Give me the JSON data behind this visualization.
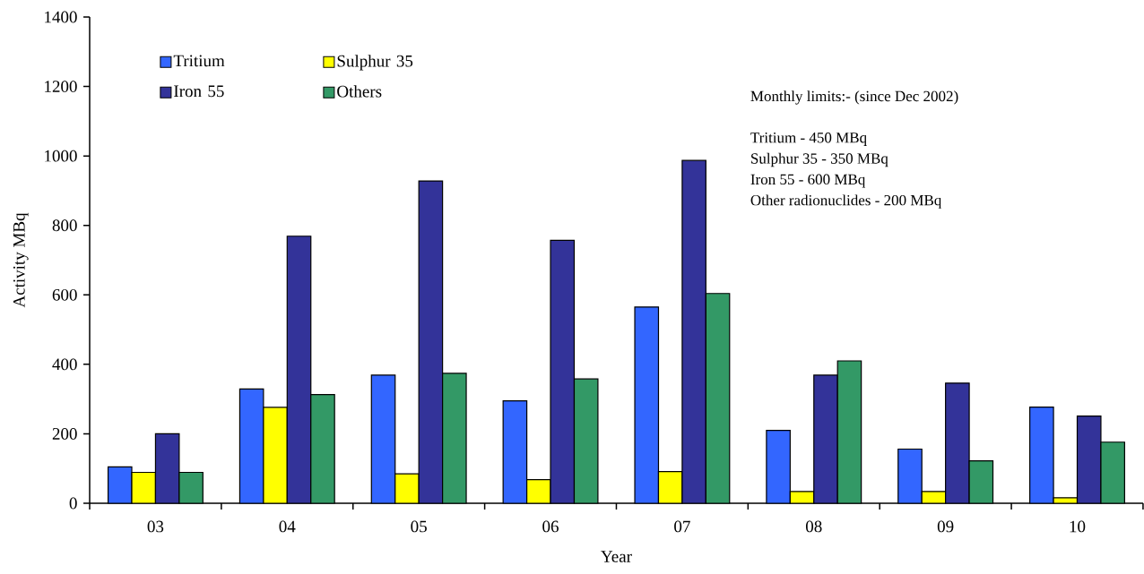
{
  "chart_data": {
    "type": "bar",
    "xlabel": "Year",
    "ylabel": "Activity MBq",
    "categories": [
      "03",
      "04",
      "05",
      "06",
      "07",
      "08",
      "09",
      "10"
    ],
    "series": [
      {
        "name": "Tritium",
        "color": "#3366ff",
        "values": [
          105,
          329,
          369,
          295,
          565,
          210,
          156,
          277
        ]
      },
      {
        "name": "Sulphur 35",
        "color": "#ffff00",
        "values": [
          89,
          276,
          85,
          68,
          91,
          34,
          34,
          16
        ]
      },
      {
        "name": "Iron 55",
        "color": "#333399",
        "values": [
          200,
          769,
          928,
          757,
          987,
          369,
          346,
          251
        ]
      },
      {
        "name": "Others",
        "color": "#339966",
        "values": [
          89,
          313,
          374,
          358,
          604,
          410,
          122,
          176
        ]
      }
    ],
    "ylim": [
      0,
      1400
    ],
    "yticks": [
      0,
      200,
      400,
      600,
      800,
      1000,
      1200,
      1400
    ],
    "legend": "top left",
    "annotations": [
      "Monthly limits:- (since Dec 2002)",
      "Tritium  - 450 MBq",
      "Sulphur 35 - 350 MBq",
      "Iron 55 - 600 MBq",
      "Other radionuclides - 200 MBq"
    ]
  }
}
